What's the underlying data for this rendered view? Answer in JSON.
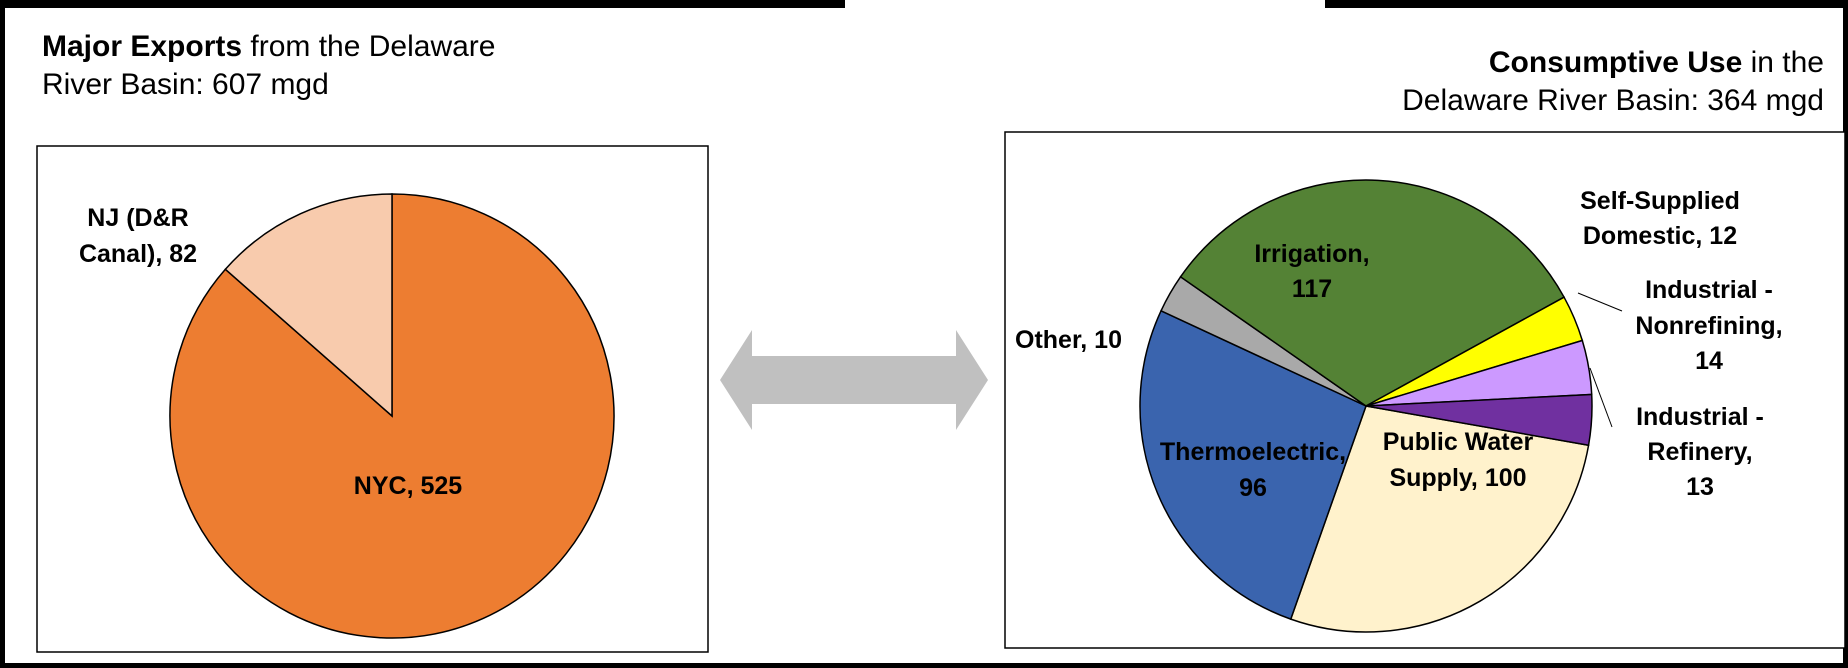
{
  "left_title": {
    "bold": "Major Exports",
    "rest": " from the Delaware",
    "line2": "River Basin: 607 mgd"
  },
  "right_title": {
    "bold": "Consumptive Use",
    "rest": " in the",
    "line2": "Delaware River Basin: 364 mgd"
  },
  "colors": {
    "orange": "#ED7D31",
    "peach": "#F8CBAD",
    "green": "#548235",
    "blue": "#3A64AE",
    "cream": "#FFF2CC",
    "purple_dark": "#7030A0",
    "purple_light": "#CC99FF",
    "yellow": "#FFFF00",
    "gray": "#A9A9A9",
    "arrow": "#C0C0C0"
  },
  "chart_data": [
    {
      "type": "pie",
      "title": "Major Exports from the Delaware River Basin: 607 mgd",
      "slices": [
        {
          "label": "NYC",
          "value": 525,
          "color": "#ED7D31"
        },
        {
          "label": "NJ (D&R Canal)",
          "value": 82,
          "color": "#F8CBAD"
        }
      ]
    },
    {
      "type": "pie",
      "title": "Consumptive Use in the Delaware River Basin: 364 mgd",
      "slices": [
        {
          "label": "Public Water Supply",
          "value": 100,
          "color": "#FFF2CC"
        },
        {
          "label": "Thermoelectric",
          "value": 96,
          "color": "#3A64AE"
        },
        {
          "label": "Other",
          "value": 10,
          "color": "#A9A9A9"
        },
        {
          "label": "Irrigation",
          "value": 117,
          "color": "#548235"
        },
        {
          "label": "Self-Supplied Domestic",
          "value": 12,
          "color": "#FFFF00"
        },
        {
          "label": "Industrial - Nonrefining",
          "value": 14,
          "color": "#CC99FF"
        },
        {
          "label": "Industrial - Refinery",
          "value": 13,
          "color": "#7030A0"
        }
      ]
    }
  ],
  "label_text": {
    "nyc": "NYC, 525",
    "nj_l1": "NJ (D&R",
    "nj_l2": "Canal), 82",
    "pws_l1": "Public Water",
    "pws_l2": "Supply, 100",
    "thermo_l1": "Thermoelectric,",
    "thermo_l2": "96",
    "other": "Other, 10",
    "irr_l1": "Irrigation,",
    "irr_l2": "117",
    "ssd_l1": "Self-Supplied",
    "ssd_l2": "Domestic, 12",
    "inr_l1": "Industrial -",
    "inr_l2": "Nonrefining,",
    "inr_l3": "14",
    "ir_l1": "Industrial -",
    "ir_l2": "Refinery,",
    "ir_l3": "13"
  }
}
